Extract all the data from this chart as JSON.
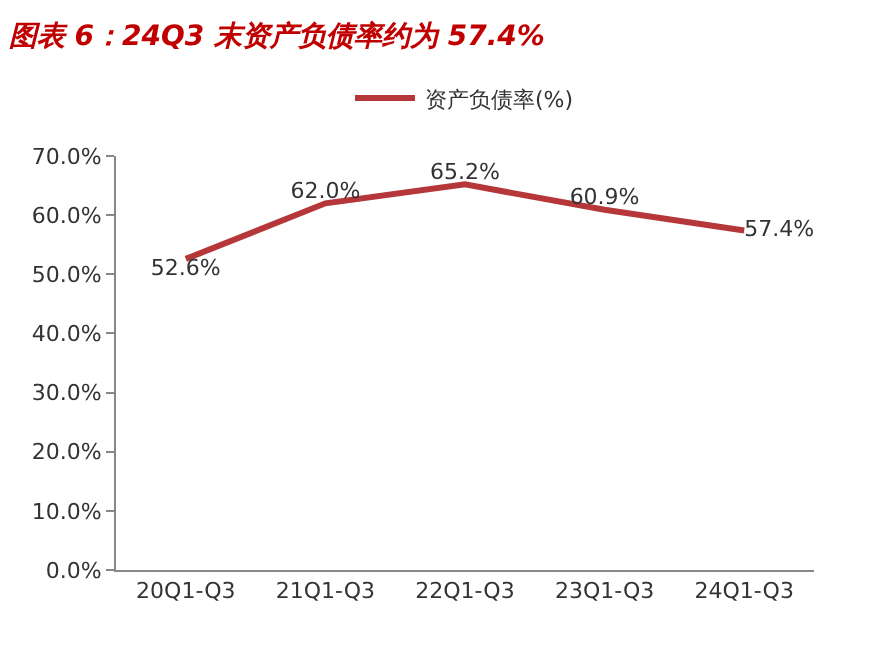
{
  "chart_data": {
    "type": "line",
    "title": "图表 6：24Q3 末资产负债率约为 57.4%",
    "categories": [
      "20Q1-Q3",
      "21Q1-Q3",
      "22Q1-Q3",
      "23Q1-Q3",
      "24Q1-Q3"
    ],
    "series": [
      {
        "name": "资产负债率(%)",
        "color": "#b5373a",
        "values": [
          52.6,
          62.0,
          65.2,
          60.9,
          57.4
        ],
        "value_labels": [
          "52.6%",
          "62.0%",
          "65.2%",
          "60.9%",
          "57.4%"
        ]
      }
    ],
    "ylim": [
      0,
      70
    ],
    "yticks": [
      {
        "value": 0,
        "label": "0.0%"
      },
      {
        "value": 10,
        "label": "10.0%"
      },
      {
        "value": 20,
        "label": "20.0%"
      },
      {
        "value": 30,
        "label": "30.0%"
      },
      {
        "value": 40,
        "label": "40.0%"
      },
      {
        "value": 50,
        "label": "50.0%"
      },
      {
        "value": 60,
        "label": "60.0%"
      },
      {
        "value": 70,
        "label": "70.0%"
      }
    ],
    "legend": "top",
    "marker": "none",
    "line_style": "solid"
  }
}
